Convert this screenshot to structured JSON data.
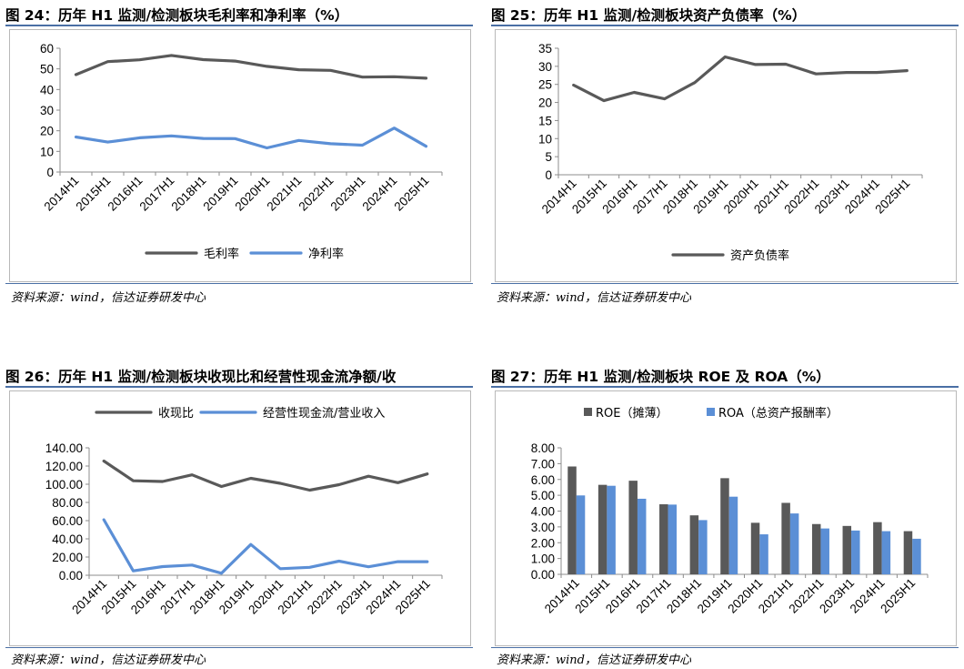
{
  "panels": [
    {
      "title": "图 24：历年 H1 监测/检测板块毛利率和净利率（%）",
      "source": "资料来源：wind，信达证券研发中心"
    },
    {
      "title": "图 25：历年 H1 监测/检测板块资产负债率（%）",
      "source": "资料来源：wind，信达证券研发中心"
    },
    {
      "title": "图 26：历年 H1 监测/检测板块收现比和经营性现金流净额/收",
      "source": "资料来源：wind，信达证券研发中心"
    },
    {
      "title": "图 27：历年 H1 监测/检测板块 ROE 及 ROA（%）",
      "source": "资料来源：wind，信达证券研发中心"
    }
  ],
  "colors": {
    "dark": "#595959",
    "blue": "#5b8fd6",
    "axis": "#8c8c8c",
    "rule": "#4a6fa5"
  },
  "chart_data": [
    {
      "type": "line",
      "categories": [
        "2014H1",
        "2015H1",
        "2016H1",
        "2017H1",
        "2018H1",
        "2019H1",
        "2020H1",
        "2021H1",
        "2022H1",
        "2023H1",
        "2024H1",
        "2025H1"
      ],
      "series": [
        {
          "name": "毛利率",
          "values": [
            47.2,
            53.5,
            54.4,
            56.5,
            54.5,
            53.8,
            51.2,
            49.6,
            49.3,
            46.0,
            46.2,
            45.5
          ]
        },
        {
          "name": "净利率",
          "values": [
            17.0,
            14.5,
            16.6,
            17.5,
            16.3,
            16.2,
            11.7,
            15.3,
            13.7,
            13.0,
            21.3,
            12.5
          ]
        }
      ],
      "ylim": [
        0,
        60
      ],
      "yticks": [
        0,
        10,
        20,
        30,
        40,
        50,
        60
      ],
      "ytick_labels": [
        "0",
        "10",
        "20",
        "30",
        "40",
        "50",
        "60"
      ],
      "legend": "bottom",
      "grid": false
    },
    {
      "type": "line",
      "categories": [
        "2014H1",
        "2015H1",
        "2016H1",
        "2017H1",
        "2018H1",
        "2019H1",
        "2020H1",
        "2021H1",
        "2022H1",
        "2023H1",
        "2024H1",
        "2025H1"
      ],
      "series": [
        {
          "name": "资产负债率",
          "values": [
            24.8,
            20.5,
            22.8,
            21.0,
            25.5,
            32.6,
            30.5,
            30.6,
            27.9,
            28.3,
            28.3,
            28.8
          ]
        }
      ],
      "ylim": [
        0,
        35
      ],
      "yticks": [
        0,
        5,
        10,
        15,
        20,
        25,
        30,
        35
      ],
      "ytick_labels": [
        "0",
        "5",
        "10",
        "15",
        "20",
        "25",
        "30",
        "35"
      ],
      "legend": "bottom",
      "grid": false
    },
    {
      "type": "line",
      "categories": [
        "2014H1",
        "2015H1",
        "2016H1",
        "2017H1",
        "2018H1",
        "2019H1",
        "2020H1",
        "2021H1",
        "2022H1",
        "2023H1",
        "2024H1",
        "2025H1"
      ],
      "series": [
        {
          "name": "收现比",
          "values": [
            125.5,
            103.8,
            103.0,
            110.3,
            97.5,
            106.5,
            101.0,
            93.5,
            99.5,
            108.8,
            101.7,
            111.3
          ]
        },
        {
          "name": "经营性现金流/营业收入",
          "values": [
            61.0,
            4.8,
            9.5,
            11.2,
            2.2,
            33.8,
            7.2,
            8.7,
            15.5,
            9.3,
            14.9,
            14.9
          ]
        }
      ],
      "ylim": [
        0,
        140
      ],
      "yticks": [
        0,
        20,
        40,
        60,
        80,
        100,
        120,
        140
      ],
      "ytick_labels": [
        "0.00",
        "20.00",
        "40.00",
        "60.00",
        "80.00",
        "100.00",
        "120.00",
        "140.00"
      ],
      "legend": "top",
      "grid": false
    },
    {
      "type": "bar",
      "categories": [
        "2014H1",
        "2015H1",
        "2016H1",
        "2017H1",
        "2018H1",
        "2019H1",
        "2020H1",
        "2021H1",
        "2022H1",
        "2023H1",
        "2024H1",
        "2025H1"
      ],
      "series": [
        {
          "name": "ROE（摊薄）",
          "values": [
            6.82,
            5.66,
            5.92,
            4.43,
            3.73,
            6.08,
            3.26,
            4.52,
            3.18,
            3.06,
            3.3,
            2.73
          ]
        },
        {
          "name": "ROA（总资产报酬率）",
          "values": [
            4.99,
            5.6,
            4.78,
            4.41,
            3.43,
            4.91,
            2.53,
            3.85,
            2.9,
            2.77,
            2.73,
            2.25
          ]
        }
      ],
      "ylim": [
        0,
        8
      ],
      "yticks": [
        0,
        1,
        2,
        3,
        4,
        5,
        6,
        7,
        8
      ],
      "ytick_labels": [
        "0.00",
        "1.00",
        "2.00",
        "3.00",
        "4.00",
        "5.00",
        "6.00",
        "7.00",
        "8.00"
      ],
      "legend": "top",
      "grid": false
    }
  ]
}
